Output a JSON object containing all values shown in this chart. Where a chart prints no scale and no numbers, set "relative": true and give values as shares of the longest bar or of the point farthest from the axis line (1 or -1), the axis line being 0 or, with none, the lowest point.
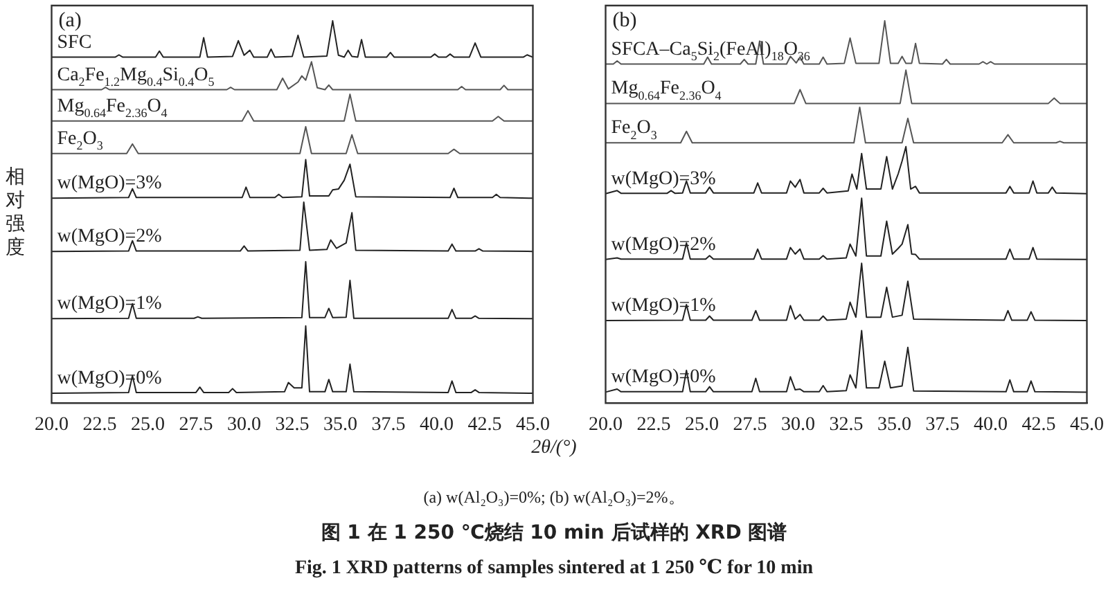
{
  "chart_data": [
    {
      "type": "line",
      "relative": true,
      "tick_labels": "x",
      "marker": "none",
      "line_style": "solid",
      "xlim": [
        20,
        45
      ],
      "xticks": [
        {
          "value": 20,
          "label": "20.0"
        },
        {
          "value": 22.5,
          "label": "22.5"
        },
        {
          "value": 25,
          "label": "25.0"
        },
        {
          "value": 27.5,
          "label": "27.5"
        },
        {
          "value": 30,
          "label": "30.0"
        },
        {
          "value": 32.5,
          "label": "32.5"
        },
        {
          "value": 35,
          "label": "35.0"
        },
        {
          "value": 37.5,
          "label": "37.5"
        },
        {
          "value": 40,
          "label": "40.0"
        },
        {
          "value": 42.5,
          "label": "42.5"
        },
        {
          "value": 45,
          "label": "45.0"
        }
      ],
      "xlabel": "2θ/(°)",
      "ylabel": "相对强度",
      "annotations": [
        "(a)",
        "(a) w(Al₂O₃)=0%; (b) w(Al₂O₃)=2%。",
        "图 1 在 1 250 ℃烧结 10 min 后试样的 XRD 图谱",
        "Fig. 1 XRD patterns of samples sintered at 1 250 ℃ for 10 min"
      ],
      "series": [
        {
          "name": "SFC",
          "color": "#222222",
          "x": [
            20,
            23.3,
            23.5,
            23.7,
            25.4,
            25.6,
            25.8,
            27.7,
            27.9,
            28.1,
            29.4,
            29.7,
            30.0,
            30.3,
            30.5,
            31.2,
            31.4,
            31.6,
            32.5,
            32.8,
            33.1,
            34.3,
            34.6,
            34.9,
            35.2,
            35.4,
            35.6,
            35.9,
            36.1,
            36.3,
            37.4,
            37.6,
            37.8,
            39.7,
            39.9,
            40.1,
            40.5,
            40.7,
            40.9,
            41.7,
            42.0,
            42.3,
            44.5,
            44.7,
            45
          ],
          "values": [
            0.905,
            0.905,
            0.911,
            0.905,
            0.905,
            0.921,
            0.905,
            0.905,
            0.956,
            0.905,
            0.907,
            0.948,
            0.91,
            0.923,
            0.905,
            0.905,
            0.926,
            0.905,
            0.907,
            0.962,
            0.905,
            0.908,
            1.0,
            0.91,
            0.905,
            0.923,
            0.907,
            0.905,
            0.951,
            0.905,
            0.905,
            0.917,
            0.905,
            0.905,
            0.913,
            0.905,
            0.905,
            0.913,
            0.905,
            0.905,
            0.942,
            0.905,
            0.905,
            0.911,
            0.905
          ]
        },
        {
          "name": "Ca$_{2}$Fe$_{1.2}$Mg$_{0.4}$Si$_{0.4}$O$_{5}$",
          "color": "#555555",
          "x": [
            20,
            22.6,
            22.8,
            23.0,
            29.1,
            29.3,
            29.5,
            31.7,
            32.0,
            32.3,
            32.8,
            33.0,
            33.2,
            33.5,
            33.8,
            34.2,
            34.4,
            34.6,
            41.1,
            41.3,
            41.5,
            43.3,
            43.5,
            43.7,
            45
          ],
          "values": [
            0.82,
            0.82,
            0.826,
            0.82,
            0.82,
            0.826,
            0.82,
            0.82,
            0.85,
            0.822,
            0.84,
            0.856,
            0.845,
            0.893,
            0.825,
            0.82,
            0.832,
            0.82,
            0.82,
            0.828,
            0.82,
            0.82,
            0.831,
            0.82,
            0.82
          ]
        },
        {
          "name": "Mg$_{0.64}$Fe$_{2.36}$O$_{4}$",
          "color": "#555555",
          "x": [
            20,
            29.9,
            30.2,
            30.5,
            35.2,
            35.5,
            35.8,
            42.9,
            43.2,
            43.5,
            45
          ],
          "values": [
            0.738,
            0.738,
            0.765,
            0.738,
            0.738,
            0.808,
            0.738,
            0.738,
            0.75,
            0.738,
            0.738
          ]
        },
        {
          "name": "Fe$_{2}$O$_{3}$",
          "color": "#555555",
          "x": [
            20,
            23.9,
            24.2,
            24.5,
            32.9,
            33.2,
            33.5,
            35.3,
            35.6,
            35.9,
            40.6,
            40.9,
            41.2,
            45
          ],
          "values": [
            0.653,
            0.653,
            0.678,
            0.653,
            0.653,
            0.723,
            0.653,
            0.653,
            0.702,
            0.653,
            0.653,
            0.664,
            0.653,
            0.653
          ]
        },
        {
          "name": "w(MgO)=3%",
          "color": "#222222",
          "x": [
            20,
            24.0,
            24.2,
            24.4,
            29.9,
            30.1,
            30.3,
            31.6,
            31.8,
            32.0,
            33.0,
            33.2,
            33.4,
            34.4,
            34.6,
            34.9,
            35.2,
            35.5,
            35.8,
            40.7,
            40.9,
            41.1,
            42.9,
            43.1,
            43.3,
            45
          ],
          "values": [
            0.536,
            0.538,
            0.561,
            0.538,
            0.538,
            0.565,
            0.538,
            0.538,
            0.546,
            0.538,
            0.54,
            0.637,
            0.542,
            0.542,
            0.558,
            0.56,
            0.583,
            0.625,
            0.54,
            0.538,
            0.562,
            0.538,
            0.538,
            0.546,
            0.538,
            0.536
          ]
        },
        {
          "name": "w(MgO)=2%",
          "color": "#222222",
          "x": [
            20,
            24.0,
            24.2,
            24.4,
            29.8,
            30.0,
            30.2,
            32.9,
            33.1,
            33.4,
            34.3,
            34.5,
            34.8,
            35.3,
            35.6,
            35.8,
            40.6,
            40.8,
            41.0,
            42.0,
            42.2,
            42.4,
            45
          ],
          "values": [
            0.397,
            0.398,
            0.425,
            0.398,
            0.398,
            0.411,
            0.398,
            0.4,
            0.526,
            0.4,
            0.402,
            0.427,
            0.405,
            0.419,
            0.498,
            0.4,
            0.398,
            0.416,
            0.398,
            0.398,
            0.404,
            0.398,
            0.397
          ]
        },
        {
          "name": "w(MgO)=1%",
          "color": "#222222",
          "x": [
            20,
            24.0,
            24.2,
            24.4,
            27.4,
            27.6,
            27.8,
            33.0,
            33.2,
            33.4,
            34.2,
            34.4,
            34.6,
            35.3,
            35.5,
            35.7,
            40.6,
            40.8,
            41.0,
            41.8,
            42.0,
            42.2,
            45
          ],
          "values": [
            0.221,
            0.222,
            0.26,
            0.222,
            0.222,
            0.226,
            0.222,
            0.224,
            0.37,
            0.224,
            0.224,
            0.248,
            0.224,
            0.225,
            0.321,
            0.222,
            0.222,
            0.245,
            0.222,
            0.222,
            0.228,
            0.222,
            0.221
          ]
        },
        {
          "name": "w(MgO)=0%",
          "color": "#222222",
          "x": [
            20,
            24.0,
            24.2,
            24.4,
            27.5,
            27.7,
            27.9,
            29.2,
            29.4,
            29.6,
            32.1,
            32.3,
            32.6,
            33.0,
            33.2,
            33.4,
            34.2,
            34.4,
            34.6,
            35.3,
            35.5,
            35.7,
            40.6,
            40.8,
            41.0,
            41.8,
            42.0,
            42.2,
            45
          ],
          "values": [
            0.026,
            0.028,
            0.072,
            0.028,
            0.028,
            0.042,
            0.028,
            0.028,
            0.038,
            0.028,
            0.03,
            0.054,
            0.04,
            0.04,
            0.202,
            0.03,
            0.03,
            0.062,
            0.03,
            0.03,
            0.102,
            0.03,
            0.028,
            0.058,
            0.028,
            0.028,
            0.035,
            0.028,
            0.026
          ]
        }
      ]
    },
    {
      "type": "line",
      "relative": true,
      "tick_labels": "x",
      "marker": "none",
      "line_style": "solid",
      "xlim": [
        20,
        45
      ],
      "xticks": [
        {
          "value": 20,
          "label": "20.0"
        },
        {
          "value": 22.5,
          "label": "22.5"
        },
        {
          "value": 25,
          "label": "25.0"
        },
        {
          "value": 27.5,
          "label": "27.5"
        },
        {
          "value": 30,
          "label": "30.0"
        },
        {
          "value": 32.5,
          "label": "32.5"
        },
        {
          "value": 35,
          "label": "35.0"
        },
        {
          "value": 37.5,
          "label": "37.5"
        },
        {
          "value": 40,
          "label": "40.0"
        },
        {
          "value": 42.5,
          "label": "42.5"
        },
        {
          "value": 45,
          "label": "45.0"
        }
      ],
      "annotations": [
        "(b)"
      ],
      "series": [
        {
          "name": "SFCA–Ca$_{5}$Si$_{2}$(FeAl)$_{18}$O$_{36}$",
          "color": "#555555",
          "x": [
            20,
            20.4,
            20.6,
            20.8,
            25.1,
            25.3,
            25.5,
            27.0,
            27.2,
            27.4,
            27.8,
            28.0,
            28.2,
            29.4,
            29.6,
            29.9,
            30.1,
            30.3,
            31.1,
            31.3,
            31.5,
            32.4,
            32.7,
            33.0,
            34.2,
            34.5,
            34.8,
            35.2,
            35.4,
            35.6,
            35.9,
            36.1,
            36.3,
            37.5,
            37.7,
            37.9,
            39.4,
            39.6,
            39.8,
            40.0,
            40.2,
            45
          ],
          "values": [
            0.887,
            0.887,
            0.895,
            0.887,
            0.887,
            0.905,
            0.887,
            0.887,
            0.899,
            0.887,
            0.887,
            0.947,
            0.887,
            0.887,
            0.907,
            0.89,
            0.905,
            0.887,
            0.887,
            0.905,
            0.887,
            0.889,
            0.955,
            0.889,
            0.889,
            1.0,
            0.889,
            0.889,
            0.907,
            0.889,
            0.889,
            0.941,
            0.889,
            0.887,
            0.899,
            0.887,
            0.887,
            0.893,
            0.887,
            0.893,
            0.887,
            0.887
          ]
        },
        {
          "name": "Mg$_{0.64}$Fe$_{2.36}$O$_{4}$",
          "color": "#555555",
          "x": [
            20,
            29.8,
            30.1,
            30.4,
            35.3,
            35.6,
            35.9,
            43.0,
            43.3,
            43.6,
            45
          ],
          "values": [
            0.784,
            0.784,
            0.82,
            0.784,
            0.784,
            0.871,
            0.784,
            0.784,
            0.798,
            0.784,
            0.784
          ]
        },
        {
          "name": "Fe$_{2}$O$_{3}$",
          "color": "#555555",
          "x": [
            20,
            23.9,
            24.2,
            24.5,
            32.9,
            33.2,
            33.5,
            35.4,
            35.7,
            36.0,
            40.6,
            40.9,
            41.2,
            43.4,
            43.6,
            43.8,
            45
          ],
          "values": [
            0.681,
            0.681,
            0.711,
            0.681,
            0.681,
            0.774,
            0.681,
            0.681,
            0.745,
            0.681,
            0.681,
            0.702,
            0.681,
            0.681,
            0.685,
            0.681,
            0.681
          ]
        },
        {
          "name": "w(MgO)=3%",
          "color": "#222222",
          "x": [
            20,
            20.6,
            20.8,
            23.2,
            23.4,
            23.6,
            24.0,
            24.2,
            24.4,
            25.2,
            25.4,
            25.6,
            27.7,
            27.9,
            28.1,
            29.4,
            29.6,
            29.85,
            30.1,
            30.3,
            31.1,
            31.3,
            31.5,
            32.6,
            32.8,
            33.05,
            33.3,
            33.55,
            34.3,
            34.6,
            34.9,
            35.2,
            35.4,
            35.6,
            35.85,
            36.1,
            36.3,
            40.8,
            41.0,
            41.2,
            42.0,
            42.2,
            42.4,
            43.0,
            43.2,
            43.4,
            45
          ],
          "values": [
            0.548,
            0.556,
            0.549,
            0.549,
            0.556,
            0.549,
            0.55,
            0.581,
            0.55,
            0.55,
            0.565,
            0.55,
            0.55,
            0.576,
            0.55,
            0.55,
            0.581,
            0.565,
            0.585,
            0.55,
            0.55,
            0.562,
            0.55,
            0.555,
            0.599,
            0.56,
            0.653,
            0.56,
            0.56,
            0.645,
            0.56,
            0.6,
            0.633,
            0.671,
            0.56,
            0.567,
            0.55,
            0.55,
            0.567,
            0.55,
            0.55,
            0.581,
            0.55,
            0.55,
            0.565,
            0.55,
            0.548
          ]
        },
        {
          "name": "w(MgO)=2%",
          "color": "#222222",
          "x": [
            20,
            20.6,
            20.8,
            24.0,
            24.2,
            24.4,
            25.2,
            25.4,
            25.6,
            27.7,
            27.9,
            28.1,
            29.4,
            29.6,
            29.85,
            30.1,
            30.3,
            31.1,
            31.3,
            31.5,
            32.5,
            32.7,
            33.0,
            33.3,
            33.55,
            34.3,
            34.6,
            34.9,
            35.2,
            35.4,
            35.7,
            35.9,
            36.1,
            36.3,
            40.8,
            41.0,
            41.2,
            42.0,
            42.2,
            42.4,
            45
          ],
          "values": [
            0.376,
            0.38,
            0.377,
            0.377,
            0.419,
            0.377,
            0.377,
            0.386,
            0.377,
            0.377,
            0.403,
            0.377,
            0.377,
            0.407,
            0.39,
            0.403,
            0.377,
            0.377,
            0.386,
            0.377,
            0.38,
            0.416,
            0.385,
            0.536,
            0.385,
            0.385,
            0.476,
            0.39,
            0.405,
            0.416,
            0.467,
            0.39,
            0.389,
            0.377,
            0.377,
            0.403,
            0.377,
            0.377,
            0.407,
            0.377,
            0.376
          ]
        },
        {
          "name": "w(MgO)=1%",
          "color": "#222222",
          "x": [
            20,
            24.0,
            24.2,
            24.4,
            25.2,
            25.4,
            25.6,
            27.6,
            27.8,
            28.0,
            29.4,
            29.6,
            29.85,
            30.1,
            30.3,
            31.1,
            31.3,
            31.5,
            32.5,
            32.7,
            33.0,
            33.3,
            33.55,
            34.3,
            34.6,
            34.9,
            35.4,
            35.7,
            36.0,
            40.7,
            40.9,
            41.1,
            41.9,
            42.1,
            42.3,
            45
          ],
          "values": [
            0.216,
            0.217,
            0.258,
            0.217,
            0.217,
            0.228,
            0.217,
            0.217,
            0.242,
            0.217,
            0.217,
            0.255,
            0.22,
            0.232,
            0.217,
            0.217,
            0.228,
            0.217,
            0.22,
            0.264,
            0.225,
            0.366,
            0.225,
            0.225,
            0.303,
            0.225,
            0.23,
            0.319,
            0.22,
            0.217,
            0.242,
            0.217,
            0.217,
            0.239,
            0.217,
            0.216
          ]
        },
        {
          "name": "w(MgO)=0%",
          "color": "#222222",
          "x": [
            20,
            20.6,
            20.8,
            24.0,
            24.2,
            24.4,
            25.2,
            25.4,
            25.6,
            27.6,
            27.8,
            28.0,
            29.4,
            29.6,
            29.85,
            30.1,
            30.3,
            31.1,
            31.3,
            31.5,
            32.5,
            32.7,
            33.0,
            33.3,
            33.55,
            34.2,
            34.5,
            34.8,
            35.4,
            35.7,
            36.0,
            40.8,
            41.0,
            41.2,
            41.9,
            42.1,
            42.3,
            45
          ],
          "values": [
            0.029,
            0.037,
            0.03,
            0.03,
            0.086,
            0.03,
            0.03,
            0.043,
            0.03,
            0.03,
            0.065,
            0.03,
            0.03,
            0.069,
            0.035,
            0.037,
            0.03,
            0.03,
            0.046,
            0.03,
            0.033,
            0.074,
            0.04,
            0.19,
            0.04,
            0.04,
            0.11,
            0.04,
            0.045,
            0.146,
            0.032,
            0.03,
            0.061,
            0.03,
            0.03,
            0.058,
            0.03,
            0.029
          ]
        }
      ]
    }
  ]
}
